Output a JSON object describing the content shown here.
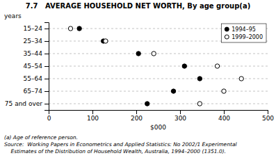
{
  "chart_data": {
    "type": "dot",
    "title": "7.7   AVERAGE HOUSEHOLD NET WORTH, By age group(a)",
    "orientation": "horizontal",
    "categories": [
      "15–24",
      "25–34",
      "35–44",
      "45–54",
      "55–64",
      "65–74",
      "75 and over"
    ],
    "series": [
      {
        "name": "1994–95",
        "color": "#000000",
        "marker": "filled-circle",
        "values": [
          70,
          125,
          205,
          310,
          345,
          285,
          225
        ]
      },
      {
        "name": "1999–2000",
        "color": "#000000",
        "marker": "open-circle",
        "values": [
          50,
          130,
          240,
          385,
          440,
          400,
          345
        ]
      }
    ],
    "xlabel": "$000",
    "ylabel": "years",
    "xlim": [
      0,
      500
    ],
    "xticks": [
      0,
      100,
      200,
      300,
      400,
      500
    ],
    "grid": true,
    "legend": "upper right",
    "annotations": [
      "(a) Age of reference person.",
      "Source:  Working Papers in Econometrics and Applied Statistics: No 2002/1 Experimental",
      "    Estimates of the Distribution of Household Wealth, Australia, 1994–2000 (1351.0)."
    ]
  }
}
